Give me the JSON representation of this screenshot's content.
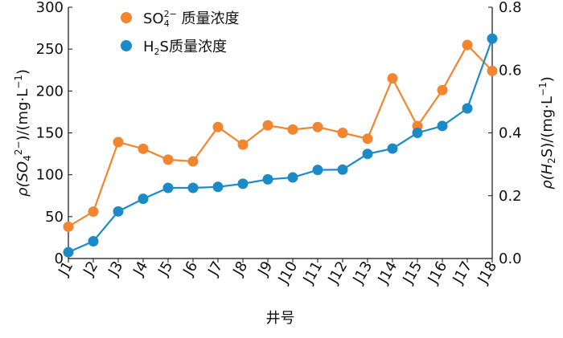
{
  "chart_data": {
    "type": "line",
    "xlabel": "井号",
    "categories": [
      "J1",
      "J2",
      "J3",
      "J4",
      "J5",
      "J6",
      "J7",
      "J8",
      "J9",
      "J10",
      "J11",
      "J12",
      "J13",
      "J14",
      "J15",
      "J16",
      "J17",
      "J18"
    ],
    "y_left": {
      "label_parts": [
        "ρ(SO",
        "4",
        "2−",
        ")/(mg·L",
        "−1",
        ")"
      ],
      "ylim": [
        0,
        300
      ],
      "ticks": [
        0,
        50,
        100,
        150,
        200,
        250,
        300
      ]
    },
    "y_right": {
      "label_parts": [
        "ρ(H",
        "2",
        "S)/(mg·L",
        "−1",
        ")"
      ],
      "ylim": [
        0,
        0.8
      ],
      "ticks": [
        "0.0",
        "0.2",
        "0.4",
        "0.6",
        "0.8"
      ]
    },
    "series": [
      {
        "name": "SO₄²⁻质量浓度",
        "legend_parts": [
          "SO",
          "4",
          "2−",
          " 质量浓度"
        ],
        "axis": "left",
        "color": "#F28630",
        "values": [
          38,
          56,
          139,
          131,
          118,
          116,
          157,
          136,
          159,
          154,
          157,
          150,
          143,
          215,
          158,
          201,
          255,
          224
        ]
      },
      {
        "name": "H₂S质量浓度",
        "legend_parts": [
          "H",
          "2",
          "S质量浓度"
        ],
        "axis": "right",
        "color": "#1A8BC7",
        "values": [
          0.02,
          0.055,
          0.15,
          0.19,
          0.225,
          0.225,
          0.228,
          0.238,
          0.252,
          0.258,
          0.282,
          0.283,
          0.333,
          0.35,
          0.4,
          0.422,
          0.478,
          0.7
        ]
      }
    ]
  }
}
